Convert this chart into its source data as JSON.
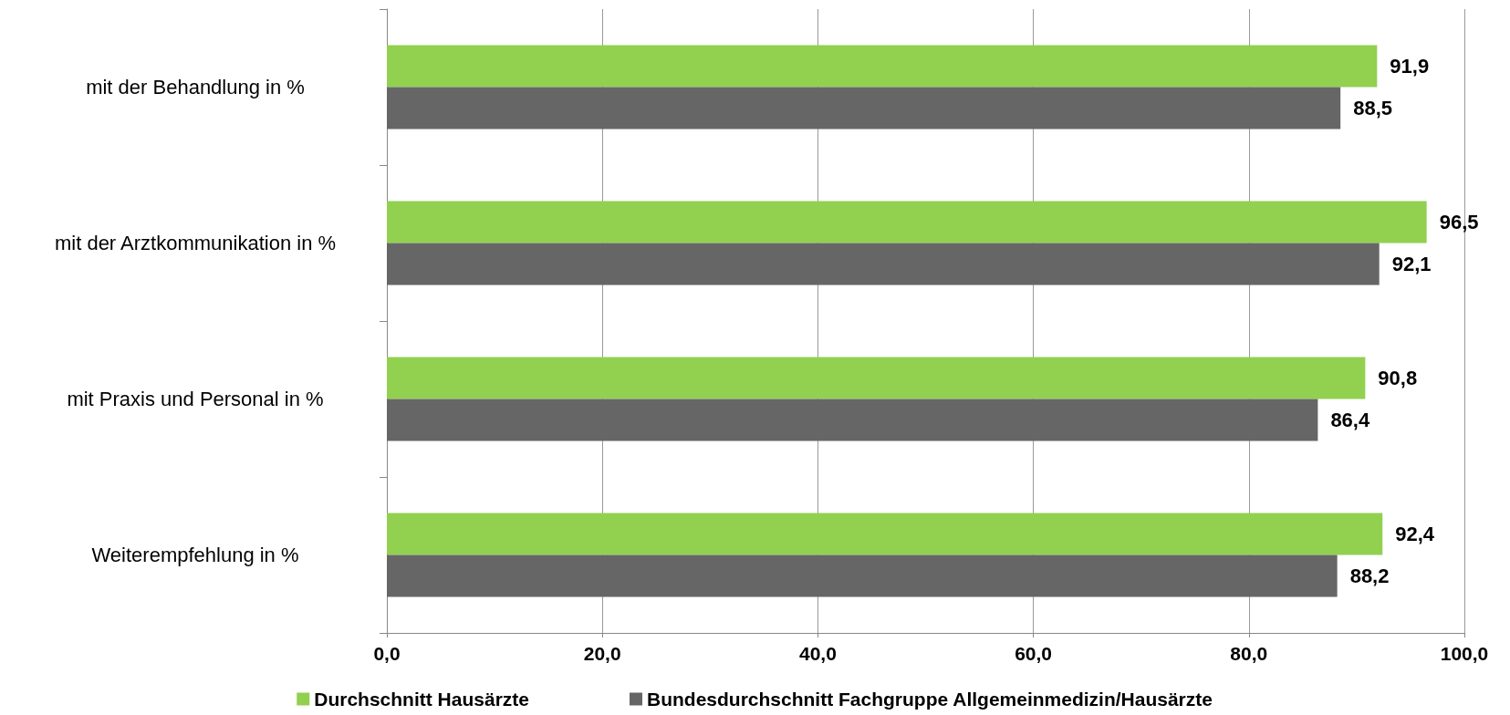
{
  "chart_data": {
    "type": "bar",
    "orientation": "horizontal",
    "categories": [
      "mit der Behandlung in %",
      "mit der Arztkommunikation in %",
      "mit Praxis und Personal in %",
      "Weiterempfehlung in %"
    ],
    "series": [
      {
        "name": "Durchschnitt Hausärzte",
        "color": "#92d050",
        "values": [
          91.9,
          96.5,
          90.8,
          92.4
        ],
        "value_labels": [
          "91,9",
          "96,5",
          "90,8",
          "92,4"
        ]
      },
      {
        "name": "Bundesdurchschnitt Fachgruppe Allgemeinmedizin/Hausärzte",
        "color": "#666666",
        "values": [
          88.5,
          92.1,
          86.4,
          88.2
        ],
        "value_labels": [
          "88,5",
          "92,1",
          "86,4",
          "88,2"
        ]
      }
    ],
    "xlim": [
      0,
      100
    ],
    "xticks": [
      {
        "value": 0,
        "label": "0,0"
      },
      {
        "value": 20,
        "label": "20,0"
      },
      {
        "value": 40,
        "label": "40,0"
      },
      {
        "value": 60,
        "label": "60,0"
      },
      {
        "value": 80,
        "label": "80,0"
      },
      {
        "value": 100,
        "label": "100,0"
      }
    ],
    "grid": "x",
    "legend": "bottom"
  }
}
